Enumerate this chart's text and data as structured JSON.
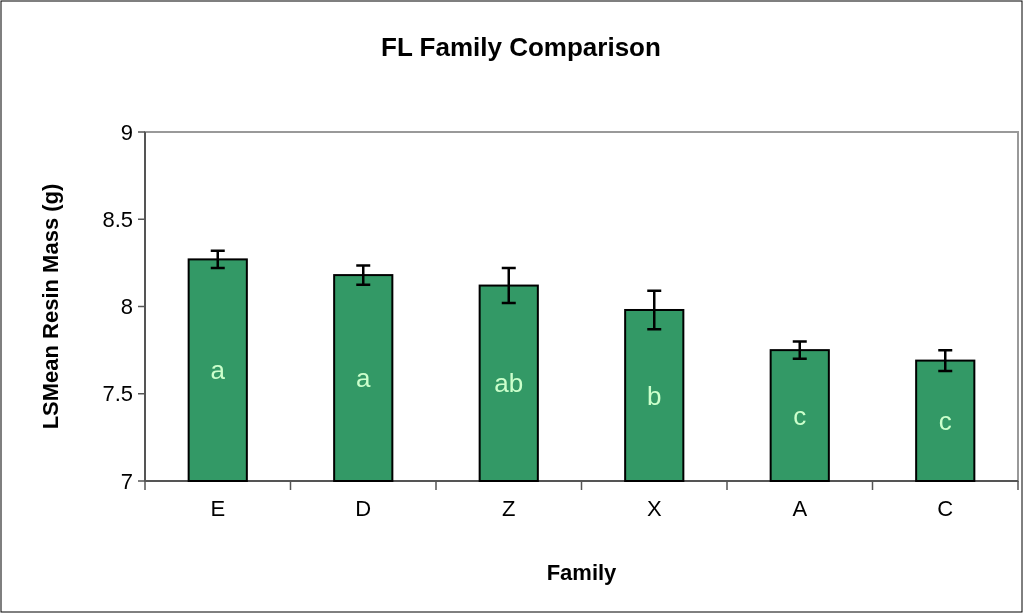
{
  "chart_data": {
    "type": "bar",
    "title": "FL Family Comparison",
    "xlabel": "Family",
    "ylabel": "LSMean Resin Mass (g)",
    "categories": [
      "E",
      "D",
      "Z",
      "X",
      "A",
      "C"
    ],
    "values": [
      8.27,
      8.18,
      8.12,
      7.98,
      7.75,
      7.69
    ],
    "errors": [
      0.05,
      0.055,
      0.1,
      0.11,
      0.05,
      0.06
    ],
    "color": "#339966",
    "ylim": [
      7,
      9
    ],
    "yticks": [
      7,
      7.5,
      8,
      8.5,
      9
    ],
    "grid": false,
    "annotations": [
      "a",
      "a",
      "ab",
      "b",
      "c",
      "c"
    ]
  }
}
